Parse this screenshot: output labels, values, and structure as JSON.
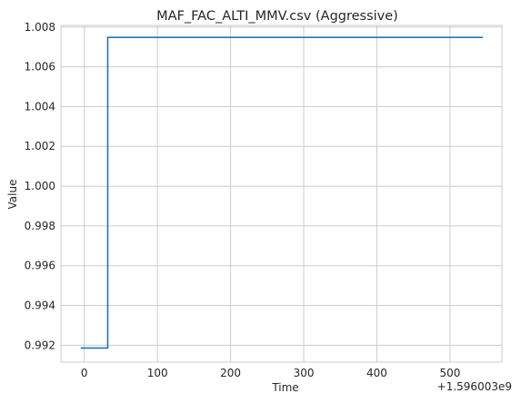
{
  "chart_data": {
    "type": "line",
    "title": "MAF_FAC_ALTI_MMV.csv (Aggressive)",
    "xlabel": "Time",
    "ylabel": "Value",
    "x_offset_label": "+1.596003e9",
    "xlim": [
      -32,
      571
    ],
    "ylim": [
      0.99115,
      1.00808
    ],
    "x_ticks": [
      0,
      100,
      200,
      300,
      400,
      500
    ],
    "y_ticks": [
      0.992,
      0.994,
      0.996,
      0.998,
      1.0,
      1.002,
      1.004,
      1.006,
      1.008
    ],
    "y_tick_labels": [
      "0.992",
      "0.994",
      "0.996",
      "0.998",
      "1.000",
      "1.002",
      "1.004",
      "1.006",
      "1.008"
    ],
    "grid": true,
    "line_color": "#1f77b4",
    "series": [
      {
        "drawstyle": "steps-post",
        "x": [
          -5,
          32,
          545
        ],
        "y": [
          0.99186,
          1.00748,
          1.00748
        ]
      }
    ]
  }
}
